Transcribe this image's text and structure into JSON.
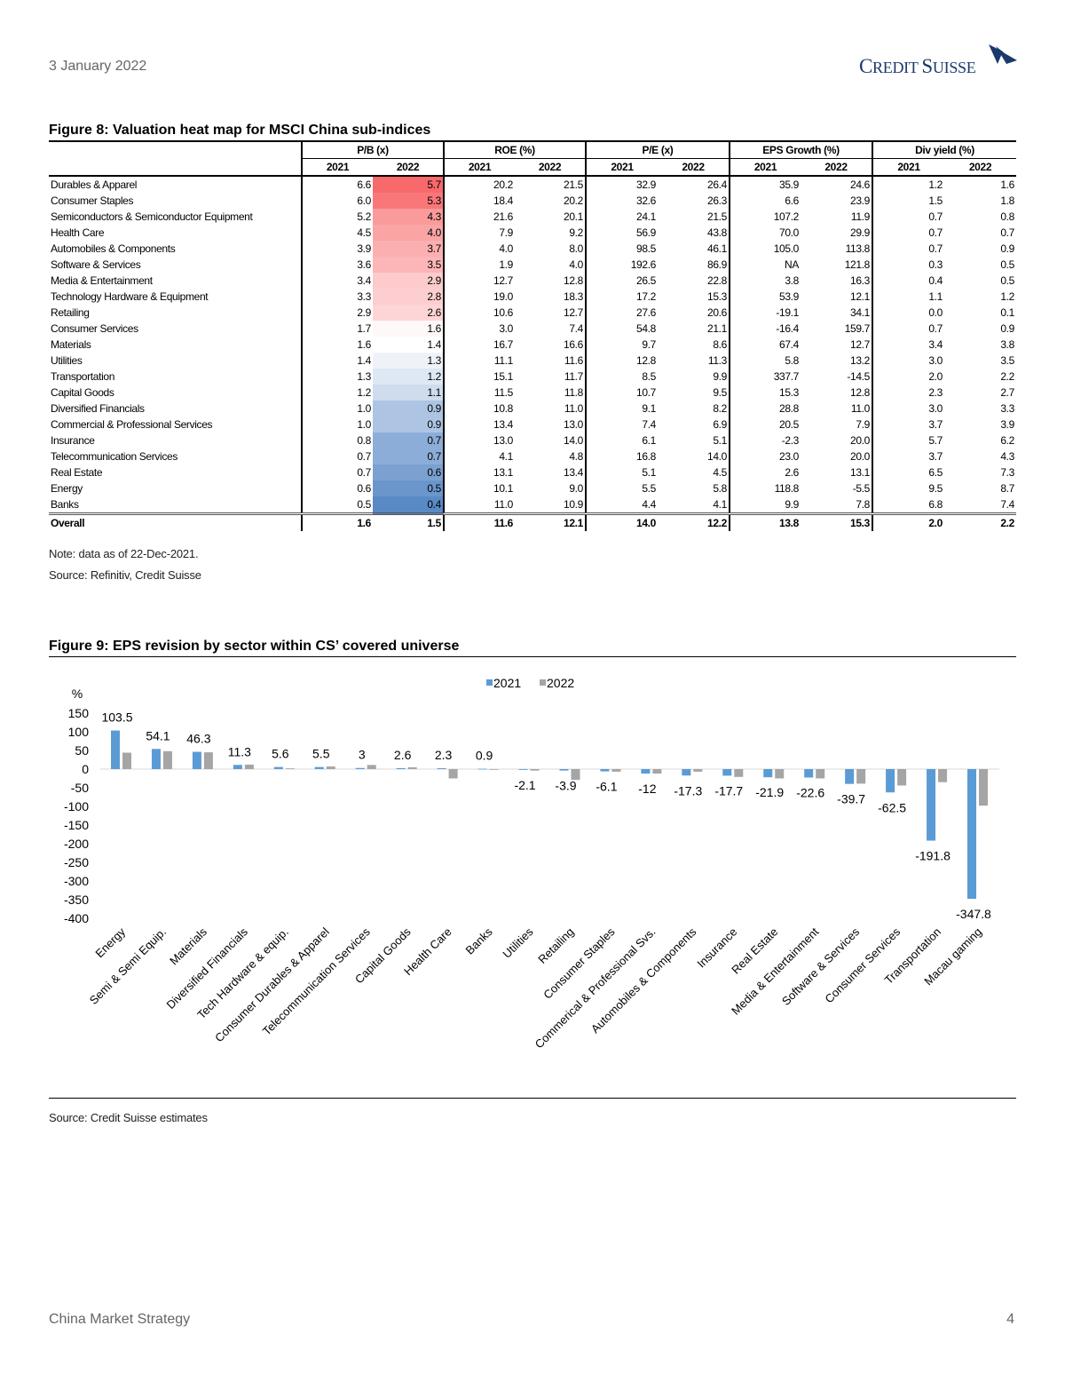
{
  "header": {
    "date": "3 January 2022",
    "logo_text": "Credit Suisse"
  },
  "figure8": {
    "title": "Figure 8: Valuation heat map for MSCI China sub-indices",
    "groups": [
      "P/B (x)",
      "ROE (%)",
      "P/E (x)",
      "EPS Growth (%)",
      "Div yield (%)"
    ],
    "years": [
      "2021",
      "2022"
    ],
    "heat_colors": {
      "high": "#f8696b",
      "mid": "#ffffff",
      "low": "#5a8ac6"
    },
    "rows": [
      {
        "name": "Durables & Apparel",
        "values": [
          "6.6",
          "5.7",
          "20.2",
          "21.5",
          "32.9",
          "26.4",
          "35.9",
          "24.6",
          "1.2",
          "1.6"
        ]
      },
      {
        "name": "Consumer Staples",
        "values": [
          "6.0",
          "5.3",
          "18.4",
          "20.2",
          "32.6",
          "26.3",
          "6.6",
          "23.9",
          "1.5",
          "1.8"
        ]
      },
      {
        "name": "Semiconductors & Semiconductor Equipment",
        "values": [
          "5.2",
          "4.3",
          "21.6",
          "20.1",
          "24.1",
          "21.5",
          "107.2",
          "11.9",
          "0.7",
          "0.8"
        ]
      },
      {
        "name": "Health Care",
        "values": [
          "4.5",
          "4.0",
          "7.9",
          "9.2",
          "56.9",
          "43.8",
          "70.0",
          "29.9",
          "0.7",
          "0.7"
        ]
      },
      {
        "name": "Automobiles & Components",
        "values": [
          "3.9",
          "3.7",
          "4.0",
          "8.0",
          "98.5",
          "46.1",
          "105.0",
          "113.8",
          "0.7",
          "0.9"
        ]
      },
      {
        "name": "Software & Services",
        "values": [
          "3.6",
          "3.5",
          "1.9",
          "4.0",
          "192.6",
          "86.9",
          "NA",
          "121.8",
          "0.3",
          "0.5"
        ]
      },
      {
        "name": "Media & Entertainment",
        "values": [
          "3.4",
          "2.9",
          "12.7",
          "12.8",
          "26.5",
          "22.8",
          "3.8",
          "16.3",
          "0.4",
          "0.5"
        ]
      },
      {
        "name": "Technology Hardware & Equipment",
        "values": [
          "3.3",
          "2.8",
          "19.0",
          "18.3",
          "17.2",
          "15.3",
          "53.9",
          "12.1",
          "1.1",
          "1.2"
        ]
      },
      {
        "name": "Retailing",
        "values": [
          "2.9",
          "2.6",
          "10.6",
          "12.7",
          "27.6",
          "20.6",
          "-19.1",
          "34.1",
          "0.0",
          "0.1"
        ]
      },
      {
        "name": "Consumer Services",
        "values": [
          "1.7",
          "1.6",
          "3.0",
          "7.4",
          "54.8",
          "21.1",
          "-16.4",
          "159.7",
          "0.7",
          "0.9"
        ]
      },
      {
        "name": "Materials",
        "values": [
          "1.6",
          "1.4",
          "16.7",
          "16.6",
          "9.7",
          "8.6",
          "67.4",
          "12.7",
          "3.4",
          "3.8"
        ]
      },
      {
        "name": "Utilities",
        "values": [
          "1.4",
          "1.3",
          "11.1",
          "11.6",
          "12.8",
          "11.3",
          "5.8",
          "13.2",
          "3.0",
          "3.5"
        ]
      },
      {
        "name": "Transportation",
        "values": [
          "1.3",
          "1.2",
          "15.1",
          "11.7",
          "8.5",
          "9.9",
          "337.7",
          "-14.5",
          "2.0",
          "2.2"
        ]
      },
      {
        "name": "Capital Goods",
        "values": [
          "1.2",
          "1.1",
          "11.5",
          "11.8",
          "10.7",
          "9.5",
          "15.3",
          "12.8",
          "2.3",
          "2.7"
        ]
      },
      {
        "name": "Diversified Financials",
        "values": [
          "1.0",
          "0.9",
          "10.8",
          "11.0",
          "9.1",
          "8.2",
          "28.8",
          "11.0",
          "3.0",
          "3.3"
        ]
      },
      {
        "name": "Commercial  & Professional Services",
        "values": [
          "1.0",
          "0.9",
          "13.4",
          "13.0",
          "7.4",
          "6.9",
          "20.5",
          "7.9",
          "3.7",
          "3.9"
        ]
      },
      {
        "name": "Insurance",
        "values": [
          "0.8",
          "0.7",
          "13.0",
          "14.0",
          "6.1",
          "5.1",
          "-2.3",
          "20.0",
          "5.7",
          "6.2"
        ]
      },
      {
        "name": "Telecommunication Services",
        "values": [
          "0.7",
          "0.7",
          "4.1",
          "4.8",
          "16.8",
          "14.0",
          "23.0",
          "20.0",
          "3.7",
          "4.3"
        ]
      },
      {
        "name": "Real Estate",
        "values": [
          "0.7",
          "0.6",
          "13.1",
          "13.4",
          "5.1",
          "4.5",
          "2.6",
          "13.1",
          "6.5",
          "7.3"
        ]
      },
      {
        "name": "Energy",
        "values": [
          "0.6",
          "0.5",
          "10.1",
          "9.0",
          "5.5",
          "5.8",
          "118.8",
          "-5.5",
          "9.5",
          "8.7"
        ]
      },
      {
        "name": "Banks",
        "values": [
          "0.5",
          "0.4",
          "11.0",
          "10.9",
          "4.4",
          "4.1",
          "9.9",
          "7.8",
          "6.8",
          "7.4"
        ]
      }
    ],
    "overall": {
      "name": "Overall",
      "values": [
        "1.6",
        "1.5",
        "11.6",
        "12.1",
        "14.0",
        "12.2",
        "13.8",
        "15.3",
        "2.0",
        "2.2"
      ]
    },
    "note": "Note: data as of 22-Dec-2021.",
    "source": "Source: Refinitiv, Credit Suisse"
  },
  "figure9": {
    "title": "Figure 9: EPS revision by sector within CS’ covered universe",
    "source": "Source: Credit Suisse estimates"
  },
  "chart_data": {
    "type": "bar",
    "title": "Figure 9: EPS revision by sector within CS’ covered universe",
    "ylabel": "%",
    "ylim": [
      -400,
      150
    ],
    "yticks": [
      150,
      100,
      50,
      0,
      -50,
      -100,
      -150,
      -200,
      -250,
      -300,
      -350,
      -400
    ],
    "grid": false,
    "legend": "top-center",
    "categories": [
      "Energy",
      "Semi & Semi Equip.",
      "Materials",
      "Diversified Financials",
      "Tech Hardware & equip.",
      "Consumer Durables & Apparel",
      "Telecommunication Services",
      "Capital Goods",
      "Health Care",
      "Banks",
      "Utilities",
      "Retailing",
      "Consumer Staples",
      "Commerical & Professional Svs.",
      "Automobiles & Components",
      "Insurance",
      "Real Estate",
      "Media & Entertainment",
      "Software & Services",
      "Consumer Services",
      "Transportation",
      "Macau gaming"
    ],
    "series": [
      {
        "name": "2021",
        "color": "#5b9bd5",
        "labeled": true,
        "values": [
          103.5,
          54.1,
          46.3,
          11.3,
          5.6,
          5.5,
          3.0,
          2.6,
          2.3,
          0.9,
          -2.1,
          -3.9,
          -6.1,
          -12.0,
          -17.3,
          -17.7,
          -21.9,
          -22.6,
          -39.7,
          -62.5,
          -191.8,
          -347.8
        ]
      },
      {
        "name": "2022",
        "color": "#a5a5a5",
        "labeled": false,
        "values": [
          44,
          48,
          45,
          12,
          2,
          7,
          11,
          5,
          -25,
          0,
          -4,
          -29,
          -7,
          -12,
          -7,
          -21,
          -25,
          -25,
          -39,
          -44,
          -35,
          -98
        ]
      }
    ]
  },
  "footer": {
    "left": "China Market Strategy",
    "page": "4"
  }
}
